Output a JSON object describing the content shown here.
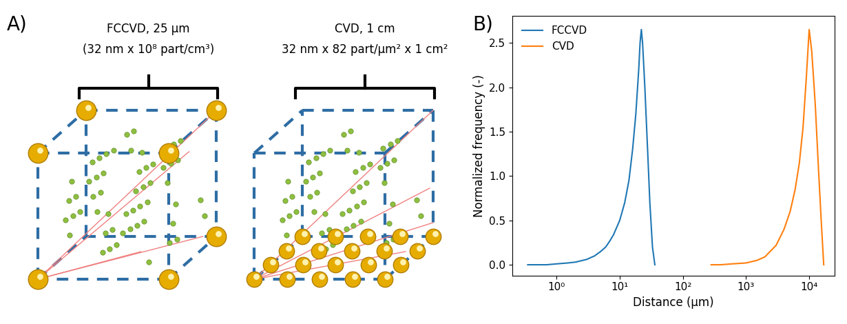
{
  "panel_a": {
    "label": "A)",
    "cubes": [
      {
        "title": "FCCVD, 25 μm",
        "subtitle": "(32 nm x 10⁸ part/cm³)"
      },
      {
        "title": "CVD, 1 cm",
        "subtitle": "32 nm x 82 part/μm² x 1 cm²"
      }
    ]
  },
  "chart_data": {
    "type": "line",
    "panel_label": "B)",
    "x_label": "Distance (μm)",
    "y_label": "Normalized frequency (-)",
    "log": "x",
    "grid": false,
    "legend": "upper left",
    "xlim": [
      0.2,
      25000
    ],
    "xticks": [
      {
        "value": 1,
        "label": "10⁰"
      },
      {
        "value": 10,
        "label": "10¹"
      },
      {
        "value": 100,
        "label": "10²"
      },
      {
        "value": 1000,
        "label": "10³"
      },
      {
        "value": 10000,
        "label": "10⁴"
      }
    ],
    "ylim": [
      -0.12,
      2.8
    ],
    "yticks": [
      0.0,
      0.5,
      1.0,
      1.5,
      2.0,
      2.5
    ],
    "series": [
      {
        "name": "FCCVD",
        "color": "#1f77b4",
        "x": [
          0.35,
          0.5,
          0.7,
          1,
          1.5,
          2,
          3,
          4,
          5,
          6,
          7,
          8,
          10,
          12,
          14,
          16,
          18,
          20,
          21,
          22,
          23,
          25,
          28,
          30,
          33,
          36
        ],
        "values": [
          0.0,
          0.0,
          0.0,
          0.01,
          0.02,
          0.03,
          0.06,
          0.1,
          0.15,
          0.2,
          0.27,
          0.34,
          0.5,
          0.7,
          0.95,
          1.3,
          1.7,
          2.2,
          2.5,
          2.65,
          2.5,
          2.0,
          1.2,
          0.7,
          0.2,
          0.0
        ]
      },
      {
        "name": "CVD",
        "color": "#ff7f0e",
        "x": [
          280,
          400,
          600,
          1000,
          1500,
          2000,
          3000,
          4000,
          5000,
          6000,
          7000,
          8000,
          9000,
          10000,
          11000,
          12500,
          14000,
          15500,
          17000
        ],
        "values": [
          0.0,
          0.0,
          0.01,
          0.02,
          0.05,
          0.09,
          0.22,
          0.4,
          0.6,
          0.85,
          1.15,
          1.55,
          2.1,
          2.65,
          2.4,
          1.8,
          1.1,
          0.5,
          0.0
        ]
      }
    ]
  }
}
